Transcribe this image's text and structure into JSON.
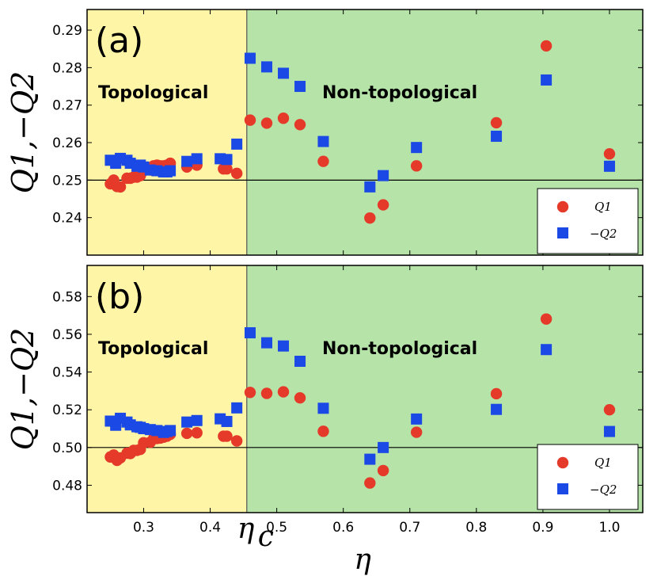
{
  "colors": {
    "topological_bg": "#fff5a6",
    "nontopological_bg": "#b5e3a8",
    "q1": "#e53a2a",
    "q2": "#1b49e6"
  },
  "x_axis": {
    "label": "η",
    "ticks": [
      0.3,
      0.4,
      0.5,
      0.6,
      0.7,
      0.8,
      0.9,
      1.0
    ],
    "tick_labels": [
      "0.3",
      "0.4",
      "0.5",
      "0.6",
      "0.7",
      "0.8",
      "0.9",
      "1.0"
    ],
    "xlim": [
      0.215,
      1.05
    ],
    "critical_value": 0.455,
    "critical_label": "η",
    "critical_sub": "c"
  },
  "chart_data": [
    {
      "type": "scatter",
      "panel_label": "(a)",
      "ylabel": "Q1,−Q2",
      "ylim": [
        0.23,
        0.2955
      ],
      "yticks": [
        0.24,
        0.25,
        0.26,
        0.27,
        0.28,
        0.29
      ],
      "ytick_labels": [
        "0.24",
        "0.25",
        "0.26",
        "0.27",
        "0.28",
        "0.29"
      ],
      "reference_line": 0.25,
      "region_labels": [
        "Topological",
        "Non-topological"
      ],
      "legend": [
        "Q1",
        "−Q2"
      ],
      "series": [
        {
          "name": "Q1",
          "marker": "circle",
          "x": [
            0.25,
            0.255,
            0.26,
            0.265,
            0.275,
            0.28,
            0.285,
            0.29,
            0.295,
            0.3,
            0.31,
            0.315,
            0.32,
            0.325,
            0.33,
            0.335,
            0.34,
            0.365,
            0.38,
            0.42,
            0.425,
            0.44,
            0.46,
            0.485,
            0.51,
            0.535,
            0.57,
            0.64,
            0.66,
            0.71,
            0.83,
            0.905,
            1.0
          ],
          "y": [
            0.249,
            0.25,
            0.2483,
            0.2482,
            0.2505,
            0.2505,
            0.2508,
            0.2508,
            0.2512,
            0.2525,
            0.2527,
            0.2538,
            0.254,
            0.2538,
            0.2538,
            0.254,
            0.2545,
            0.2535,
            0.254,
            0.253,
            0.253,
            0.2518,
            0.266,
            0.2652,
            0.2665,
            0.2648,
            0.255,
            0.2399,
            0.2434,
            0.2538,
            0.2653,
            0.2858,
            0.257
          ]
        },
        {
          "name": "−Q2",
          "marker": "square",
          "x": [
            0.25,
            0.258,
            0.265,
            0.275,
            0.28,
            0.29,
            0.295,
            0.3,
            0.31,
            0.32,
            0.33,
            0.335,
            0.34,
            0.365,
            0.38,
            0.415,
            0.425,
            0.44,
            0.46,
            0.485,
            0.51,
            0.535,
            0.57,
            0.64,
            0.66,
            0.71,
            0.83,
            0.905,
            1.0
          ],
          "y": [
            0.2553,
            0.2545,
            0.2558,
            0.2553,
            0.2545,
            0.2537,
            0.254,
            0.2535,
            0.2527,
            0.2525,
            0.2522,
            0.2522,
            0.2525,
            0.255,
            0.2557,
            0.2557,
            0.2555,
            0.2596,
            0.2825,
            0.2802,
            0.2785,
            0.275,
            0.2603,
            0.2482,
            0.2512,
            0.2587,
            0.2617,
            0.2767,
            0.2537
          ]
        }
      ]
    },
    {
      "type": "scatter",
      "panel_label": "(b)",
      "ylabel": "Q1,−Q2",
      "ylim": [
        0.4655,
        0.5965
      ],
      "yticks": [
        0.48,
        0.5,
        0.52,
        0.54,
        0.56,
        0.58
      ],
      "ytick_labels": [
        "0.48",
        "0.50",
        "0.52",
        "0.54",
        "0.56",
        "0.58"
      ],
      "reference_line": 0.5,
      "region_labels": [
        "Topological",
        "Non-topological"
      ],
      "legend": [
        "Q1",
        "−Q2"
      ],
      "series": [
        {
          "name": "Q1",
          "marker": "circle",
          "x": [
            0.25,
            0.255,
            0.26,
            0.265,
            0.275,
            0.28,
            0.285,
            0.29,
            0.295,
            0.3,
            0.31,
            0.315,
            0.32,
            0.325,
            0.33,
            0.335,
            0.34,
            0.365,
            0.38,
            0.42,
            0.425,
            0.44,
            0.46,
            0.485,
            0.51,
            0.535,
            0.57,
            0.64,
            0.66,
            0.71,
            0.83,
            0.905,
            1.0
          ],
          "y": [
            0.495,
            0.496,
            0.4932,
            0.4945,
            0.497,
            0.4968,
            0.4985,
            0.4985,
            0.499,
            0.5025,
            0.5028,
            0.5047,
            0.5048,
            0.505,
            0.5055,
            0.506,
            0.507,
            0.5075,
            0.5078,
            0.506,
            0.506,
            0.5035,
            0.5292,
            0.5287,
            0.5295,
            0.5263,
            0.5086,
            0.4812,
            0.4878,
            0.5081,
            0.5285,
            0.5681,
            0.52
          ]
        },
        {
          "name": "−Q2",
          "marker": "square",
          "x": [
            0.25,
            0.258,
            0.265,
            0.275,
            0.28,
            0.29,
            0.295,
            0.3,
            0.31,
            0.32,
            0.33,
            0.335,
            0.34,
            0.365,
            0.38,
            0.415,
            0.425,
            0.44,
            0.46,
            0.485,
            0.51,
            0.535,
            0.57,
            0.64,
            0.66,
            0.71,
            0.83,
            0.905,
            1.0
          ],
          "y": [
            0.514,
            0.5118,
            0.5155,
            0.5135,
            0.512,
            0.511,
            0.5107,
            0.51,
            0.5095,
            0.509,
            0.508,
            0.5085,
            0.509,
            0.5135,
            0.5143,
            0.5152,
            0.5138,
            0.521,
            0.5608,
            0.5555,
            0.5538,
            0.5457,
            0.5208,
            0.4938,
            0.5,
            0.5151,
            0.5202,
            0.5519,
            0.5085
          ]
        }
      ]
    }
  ]
}
